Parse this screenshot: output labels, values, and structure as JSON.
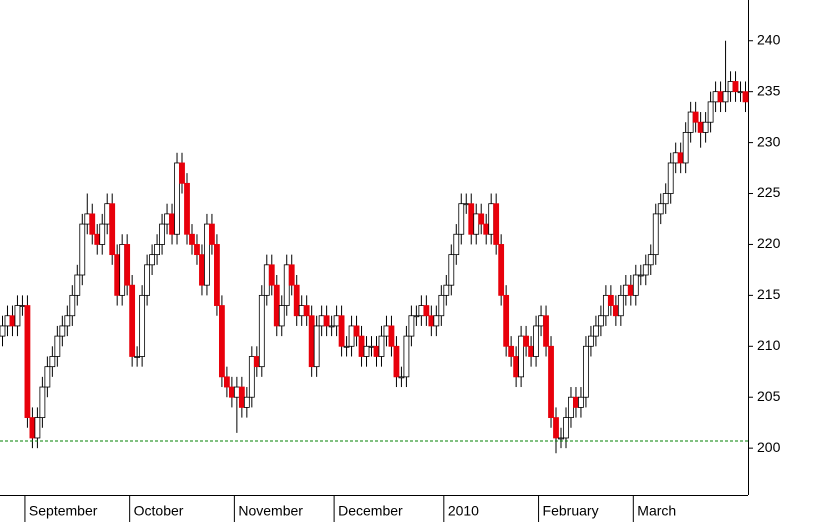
{
  "chart_data": {
    "type": "candlestick",
    "categories": [
      null,
      null,
      null,
      null,
      null,
      "September",
      null,
      null,
      null,
      null,
      null,
      null,
      null,
      null,
      null,
      null,
      null,
      null,
      null,
      null,
      null,
      null,
      null,
      null,
      null,
      null,
      "October",
      null,
      null,
      null,
      null,
      null,
      null,
      null,
      null,
      null,
      null,
      null,
      null,
      null,
      null,
      null,
      null,
      null,
      null,
      null,
      null,
      "November",
      null,
      null,
      null,
      null,
      null,
      null,
      null,
      null,
      null,
      null,
      null,
      null,
      null,
      null,
      null,
      null,
      null,
      null,
      null,
      "December",
      null,
      null,
      null,
      null,
      null,
      null,
      null,
      null,
      null,
      null,
      null,
      null,
      null,
      null,
      null,
      null,
      null,
      null,
      null,
      null,
      null,
      "2010",
      null,
      null,
      null,
      null,
      null,
      null,
      null,
      null,
      null,
      null,
      null,
      null,
      null,
      null,
      null,
      null,
      null,
      null,
      "February",
      null,
      null,
      null,
      null,
      null,
      null,
      null,
      null,
      null,
      null,
      null,
      null,
      null,
      null,
      null,
      null,
      null,
      null,
      "March",
      null,
      null,
      null,
      null,
      null,
      null,
      null,
      null,
      null,
      null,
      null,
      null,
      null,
      null,
      null,
      null,
      null,
      null,
      null,
      null,
      null,
      null
    ],
    "open": [
      211,
      212,
      213,
      212,
      214,
      214,
      203,
      201,
      203,
      206,
      208,
      209,
      211,
      212,
      213,
      215,
      217,
      222,
      223,
      221,
      220,
      222,
      224,
      219,
      215,
      220,
      216,
      209,
      209,
      215,
      218,
      219,
      220,
      222,
      223,
      221,
      228,
      226,
      221,
      220,
      219,
      216,
      222,
      220,
      214,
      207,
      206,
      205,
      206,
      204,
      205,
      209,
      208,
      215,
      218,
      216,
      212,
      214,
      218,
      216,
      213,
      214,
      213,
      208,
      212,
      213,
      212,
      212,
      213,
      210,
      210,
      212,
      211,
      209,
      210,
      210,
      209,
      211,
      212,
      210,
      207,
      207,
      211,
      213,
      213,
      214,
      213,
      212,
      213,
      215,
      216,
      219,
      221,
      224,
      224,
      221,
      223,
      222,
      221,
      224,
      220,
      215,
      210,
      209,
      207,
      211,
      210,
      209,
      212,
      213,
      210,
      203,
      201,
      201,
      203,
      205,
      204,
      205,
      210,
      211,
      212,
      213,
      215,
      214,
      213,
      215,
      216,
      215,
      217,
      217,
      218,
      219,
      223,
      224,
      225,
      228,
      229,
      228,
      231,
      233,
      232,
      231,
      232,
      234,
      235,
      234,
      235,
      236,
      235,
      235
    ],
    "high": [
      213,
      214,
      214,
      215,
      215,
      215,
      204,
      204,
      207,
      209,
      210,
      212,
      213,
      214,
      216,
      218,
      223,
      225,
      224,
      222,
      223,
      225,
      225,
      220,
      221,
      221,
      217,
      210,
      216,
      219,
      220,
      221,
      223,
      224,
      224,
      229,
      229,
      227,
      222,
      221,
      220,
      223,
      223,
      221,
      215,
      208,
      207,
      207,
      207,
      206,
      210,
      210,
      216,
      219,
      219,
      217,
      215,
      219,
      219,
      217,
      215,
      215,
      214,
      213,
      214,
      214,
      213,
      214,
      214,
      211,
      213,
      213,
      212,
      211,
      211,
      211,
      212,
      213,
      213,
      211,
      208,
      212,
      214,
      214,
      215,
      215,
      214,
      214,
      216,
      217,
      220,
      222,
      225,
      225,
      225,
      224,
      224,
      223,
      225,
      225,
      221,
      216,
      211,
      210,
      212,
      212,
      211,
      213,
      214,
      214,
      211,
      204,
      202,
      204,
      206,
      206,
      206,
      211,
      212,
      213,
      214,
      216,
      216,
      215,
      216,
      217,
      217,
      218,
      218,
      219,
      220,
      224,
      225,
      226,
      229,
      230,
      230,
      232,
      234,
      234,
      233,
      233,
      235,
      236,
      236,
      240,
      237,
      237,
      236,
      236
    ],
    "low": [
      210,
      211,
      211,
      211,
      213,
      202,
      200,
      200,
      202,
      205,
      207,
      208,
      210,
      211,
      212,
      214,
      216,
      221,
      220,
      219,
      219,
      221,
      218,
      214,
      214,
      215,
      208,
      208,
      208,
      214,
      217,
      218,
      219,
      221,
      220,
      220,
      225,
      220,
      219,
      218,
      215,
      215,
      219,
      213,
      206,
      205,
      204,
      201.5,
      203,
      203,
      204,
      207,
      207,
      214,
      215,
      211,
      211,
      213,
      215,
      212,
      212,
      212,
      207,
      207,
      211,
      211,
      211,
      211,
      209,
      209,
      209,
      210,
      208,
      208,
      209,
      208,
      208,
      210,
      209,
      206,
      206,
      206,
      210,
      212,
      212,
      212,
      211,
      211,
      212,
      214,
      215,
      218,
      220,
      223,
      220,
      220,
      221,
      220,
      220,
      219,
      214,
      209,
      208,
      206,
      206,
      209,
      208,
      208,
      211,
      209,
      202,
      199.5,
      200,
      200,
      202,
      203,
      203,
      204,
      209,
      210,
      211,
      212,
      213,
      212,
      212,
      214,
      214,
      214,
      216,
      216,
      217,
      218,
      222,
      223,
      224,
      227,
      227,
      227,
      230,
      231,
      229.5,
      230,
      231,
      233,
      233,
      233,
      234,
      234,
      234,
      233
    ],
    "close": [
      212,
      213,
      212,
      214,
      214,
      203,
      201,
      203,
      206,
      208,
      209,
      211,
      212,
      213,
      215,
      217,
      222,
      223,
      221,
      220,
      222,
      224,
      219,
      215,
      220,
      216,
      209,
      209,
      215,
      218,
      219,
      220,
      222,
      223,
      221,
      228,
      226,
      221,
      220,
      219,
      216,
      222,
      220,
      214,
      207,
      206,
      205,
      206,
      204,
      205,
      209,
      208,
      215,
      218,
      216,
      212,
      214,
      218,
      216,
      213,
      214,
      213,
      208,
      212,
      213,
      212,
      212,
      213,
      210,
      210,
      212,
      211,
      209,
      210,
      210,
      209,
      211,
      212,
      210,
      207,
      207,
      211,
      213,
      213,
      214,
      213,
      212,
      213,
      215,
      216,
      219,
      221,
      224,
      224,
      221,
      223,
      222,
      221,
      224,
      220,
      215,
      210,
      209,
      207,
      211,
      210,
      209,
      212,
      213,
      210,
      203,
      201,
      201,
      203,
      205,
      204,
      205,
      210,
      211,
      212,
      213,
      215,
      214,
      213,
      215,
      216,
      215,
      217,
      217,
      218,
      219,
      223,
      224,
      225,
      228,
      229,
      228,
      231,
      233,
      232,
      231,
      232,
      234,
      235,
      234,
      235,
      236,
      235,
      235,
      234
    ],
    "up_color": "#ffffff",
    "down_color": "#e8000b",
    "reference_line": 200.7,
    "reference_color": "#008000",
    "ylim": [
      195.4,
      244
    ],
    "yticks": [
      200,
      205,
      210,
      215,
      220,
      225,
      230,
      235,
      240
    ]
  }
}
